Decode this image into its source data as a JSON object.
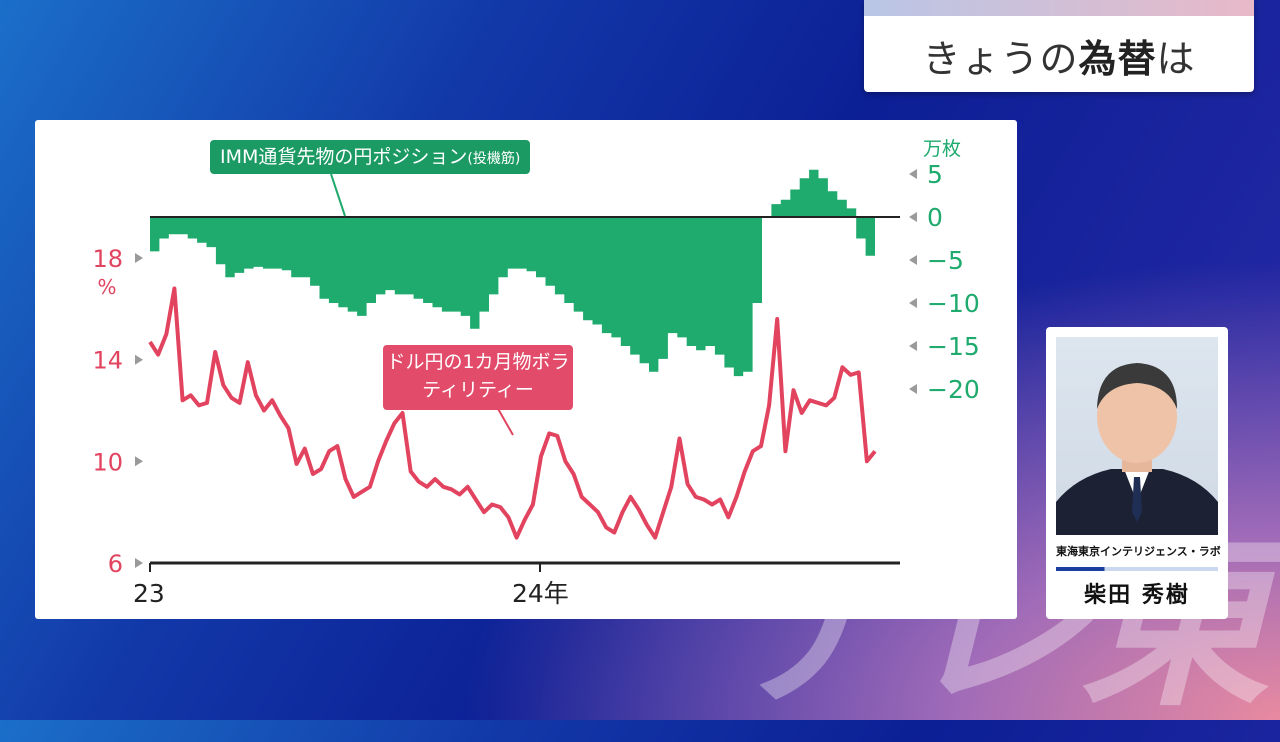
{
  "screen_title": {
    "prefix": "きょうの",
    "bold": "為替",
    "suffix": "は"
  },
  "watermark_text": "テレ東",
  "person": {
    "org": "東海東京インテリジェンス・ラボ",
    "name": "柴田 秀樹"
  },
  "colors": {
    "position": "#1faa6e",
    "volatility": "#e2445f",
    "axis": "#222222"
  },
  "chart_data": [
    {
      "type": "area",
      "label": "IMM通貨先物の円ポジション",
      "label_small": "(投機筋)",
      "unit": "万枚",
      "ylim": [
        -20,
        5
      ],
      "yticks": [
        "5",
        "0",
        "−5",
        "−10",
        "−15",
        "−20"
      ],
      "x_start": "2023-01",
      "x_end": "2024-10",
      "values": [
        -4,
        -2.5,
        -2,
        -2,
        -2.5,
        -3,
        -3.5,
        -5.5,
        -7,
        -6.5,
        -6,
        -5.8,
        -6,
        -6,
        -6.2,
        -7,
        -7,
        -8,
        -9.5,
        -10,
        -10.5,
        -11,
        -11.5,
        -10,
        -9,
        -8.5,
        -9,
        -9,
        -9.5,
        -10,
        -10.5,
        -11,
        -11,
        -11.5,
        -13,
        -11,
        -9,
        -7,
        -6,
        -6,
        -6.3,
        -7,
        -8,
        -9,
        -10,
        -11,
        -12,
        -12.5,
        -13.5,
        -14,
        -15,
        -16,
        -17,
        -18,
        -16.5,
        -13.5,
        -14,
        -15,
        -15.5,
        -15,
        -16,
        -17.5,
        -18.5,
        -18,
        -10,
        0,
        1.5,
        2,
        3.2,
        4.5,
        5.5,
        4.5,
        3,
        2,
        1,
        -2.5,
        -4.5
      ]
    },
    {
      "type": "line",
      "label": "ドル円の1カ月物ボラティリティー",
      "unit": "%",
      "ylim": [
        6,
        18
      ],
      "yticks": [
        "18",
        "14",
        "10",
        "6"
      ],
      "x_ticks": [
        "23",
        "24年"
      ],
      "x_start": "2023-01",
      "x_end": "2024-10",
      "values": [
        14.7,
        14.2,
        15.0,
        16.8,
        12.4,
        12.6,
        12.2,
        12.3,
        14.3,
        13.0,
        12.5,
        12.3,
        13.9,
        12.6,
        12.0,
        12.4,
        11.8,
        11.3,
        9.9,
        10.5,
        9.5,
        9.7,
        10.4,
        10.6,
        9.3,
        8.6,
        8.8,
        9.0,
        10.0,
        10.8,
        11.5,
        11.9,
        9.6,
        9.2,
        9.0,
        9.3,
        9.0,
        8.9,
        8.7,
        9.0,
        8.5,
        8.0,
        8.3,
        8.2,
        7.8,
        7.0,
        7.7,
        8.3,
        10.2,
        11.1,
        11.0,
        10.0,
        9.5,
        8.6,
        8.3,
        8.0,
        7.4,
        7.2,
        8.0,
        8.6,
        8.1,
        7.5,
        7.0,
        8.0,
        9.0,
        10.9,
        9.1,
        8.6,
        8.5,
        8.3,
        8.5,
        7.8,
        8.6,
        9.6,
        10.4,
        10.6,
        12.2,
        15.6,
        10.4,
        12.8,
        11.9,
        12.4,
        12.3,
        12.2,
        12.5,
        13.7,
        13.4,
        13.5,
        10.0,
        10.4
      ]
    }
  ]
}
